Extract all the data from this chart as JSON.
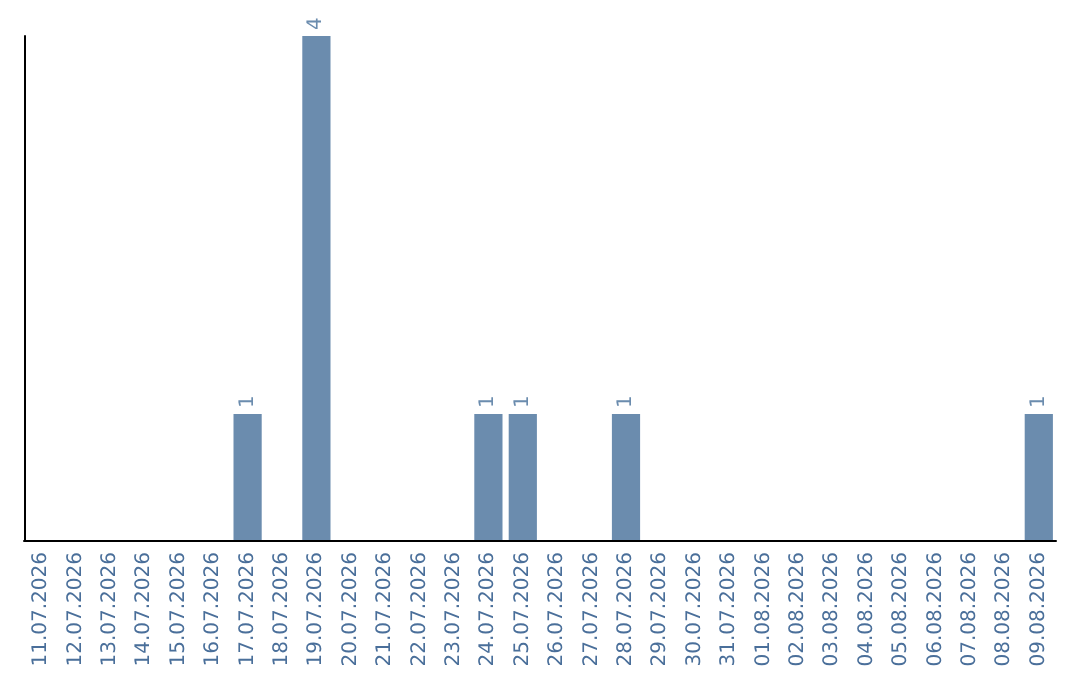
{
  "chart_data": {
    "type": "bar",
    "categories": [
      "11.07.2026",
      "12.07.2026",
      "13.07.2026",
      "14.07.2026",
      "15.07.2026",
      "16.07.2026",
      "17.07.2026",
      "18.07.2026",
      "19.07.2026",
      "20.07.2026",
      "21.07.2026",
      "22.07.2026",
      "23.07.2026",
      "24.07.2026",
      "25.07.2026",
      "26.07.2026",
      "27.07.2026",
      "28.07.2026",
      "29.07.2026",
      "30.07.2026",
      "31.07.2026",
      "01.08.2026",
      "02.08.2026",
      "03.08.2026",
      "04.08.2026",
      "05.08.2026",
      "06.08.2026",
      "07.08.2026",
      "08.08.2026",
      "09.08.2026"
    ],
    "values": [
      0,
      0,
      0,
      0,
      0,
      0,
      1,
      0,
      4,
      0,
      0,
      0,
      0,
      1,
      1,
      0,
      0,
      1,
      0,
      0,
      0,
      0,
      0,
      0,
      0,
      0,
      0,
      0,
      0,
      1
    ],
    "value_labels": [
      null,
      null,
      null,
      null,
      null,
      null,
      "1",
      null,
      "4",
      null,
      null,
      null,
      null,
      "1",
      "1",
      null,
      null,
      "1",
      null,
      null,
      null,
      null,
      null,
      null,
      null,
      null,
      null,
      null,
      null,
      "1"
    ],
    "color": "#6b8cae",
    "tick_labels": "x"
  }
}
